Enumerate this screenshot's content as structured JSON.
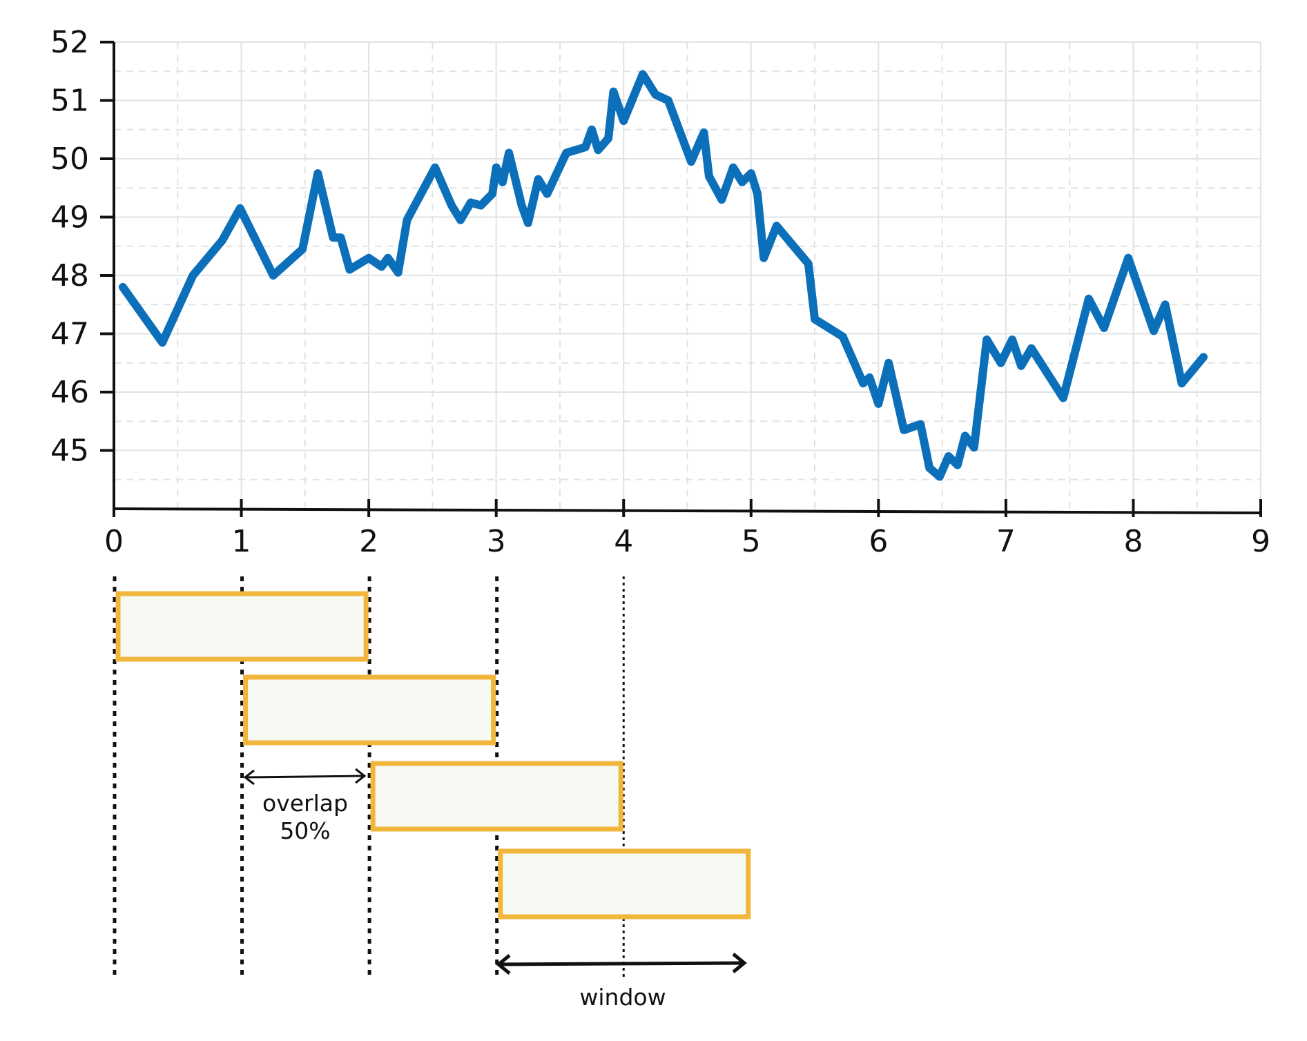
{
  "chart_data": {
    "type": "line",
    "title": "",
    "xlabel": "",
    "ylabel": "",
    "xlim": [
      0,
      9
    ],
    "ylim": [
      44,
      52
    ],
    "x_ticks": [
      "0",
      "1",
      "2",
      "3",
      "4",
      "5",
      "6",
      "7",
      "8",
      "9"
    ],
    "y_ticks": [
      "45",
      "46",
      "47",
      "48",
      "49",
      "50",
      "51",
      "52"
    ],
    "grid": true,
    "colors": {
      "series": "#0b6fba",
      "window_border": "#f2b63c",
      "window_fill": "#f6faf3"
    },
    "series": [
      {
        "x": [
          0.07,
          0.38,
          0.62,
          0.85,
          0.99,
          1.25,
          1.48,
          1.6,
          1.72,
          1.78,
          1.85,
          2.0,
          2.1,
          2.15,
          2.23,
          2.3,
          2.52,
          2.65,
          2.72,
          2.8,
          2.88,
          2.97,
          3.0,
          3.05,
          3.1,
          3.2,
          3.25,
          3.33,
          3.4,
          3.55,
          3.7,
          3.75,
          3.8,
          3.88,
          3.92,
          4.0,
          4.15,
          4.25,
          4.35,
          4.53,
          4.63,
          4.67,
          4.77,
          4.86,
          4.93,
          5.0,
          5.05,
          5.1,
          5.2,
          5.45,
          5.5,
          5.72,
          5.88,
          5.93,
          6.0,
          6.08,
          6.2,
          6.33,
          6.4,
          6.48,
          6.55,
          6.62,
          6.68,
          6.75,
          6.85,
          6.96,
          7.05,
          7.12,
          7.2,
          7.45,
          7.65,
          7.77,
          7.96,
          8.16,
          8.25,
          8.38,
          8.55
        ],
        "y": [
          47.8,
          46.85,
          48.0,
          48.6,
          49.15,
          48.0,
          48.45,
          49.75,
          48.65,
          48.65,
          48.1,
          48.3,
          48.15,
          48.3,
          48.05,
          48.95,
          49.85,
          49.2,
          48.95,
          49.25,
          49.2,
          49.4,
          49.85,
          49.6,
          50.1,
          49.2,
          48.9,
          49.65,
          49.4,
          50.1,
          50.2,
          50.5,
          50.15,
          50.35,
          51.15,
          50.65,
          51.45,
          51.1,
          51.0,
          49.95,
          50.45,
          49.7,
          49.3,
          49.85,
          49.6,
          49.75,
          49.4,
          48.3,
          48.85,
          48.2,
          47.25,
          46.95,
          46.15,
          46.25,
          45.8,
          46.5,
          45.35,
          45.45,
          44.7,
          44.55,
          44.9,
          44.75,
          45.25,
          45.05,
          46.9,
          46.5,
          46.9,
          46.45,
          46.75,
          45.9,
          47.6,
          47.1,
          48.3,
          47.05,
          47.5,
          46.15,
          46.6
        ]
      }
    ]
  },
  "windows": [
    {
      "start": 0,
      "end": 2
    },
    {
      "start": 1,
      "end": 3
    },
    {
      "start": 2,
      "end": 4
    },
    {
      "start": 3,
      "end": 5
    }
  ],
  "annotations": {
    "overlap_line1": "overlap",
    "overlap_line2": "50%",
    "window": "window"
  }
}
